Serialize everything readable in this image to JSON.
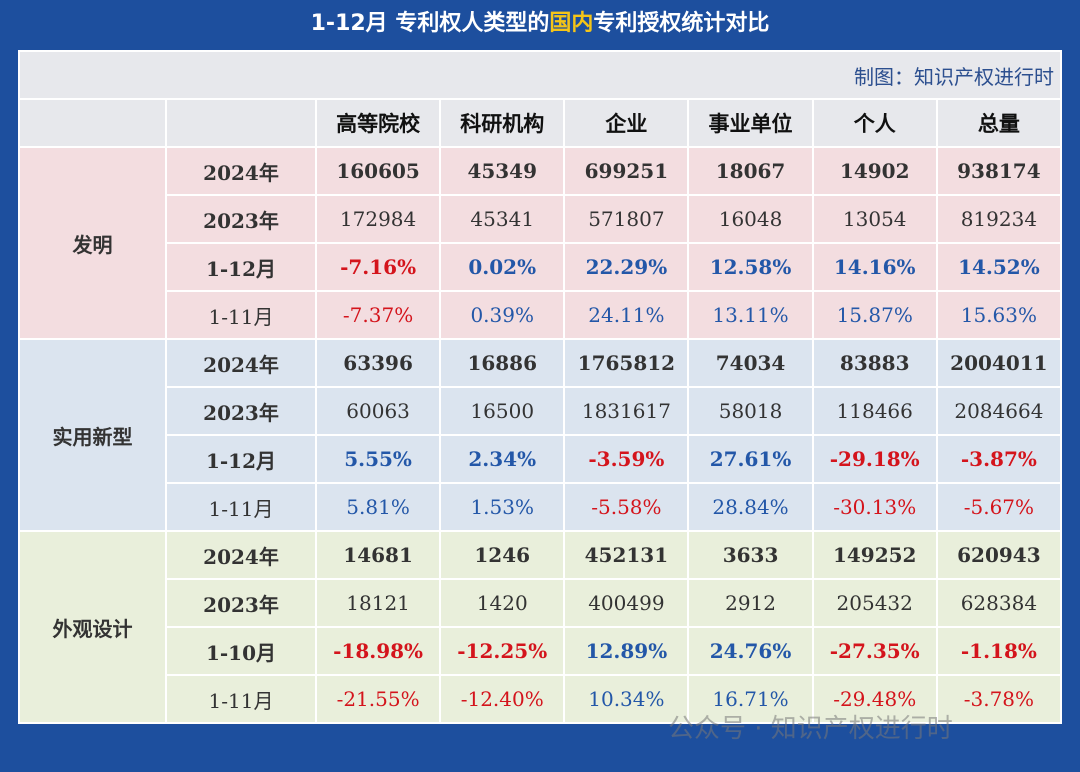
{
  "title": {
    "parts": [
      "1-12月  专利权人类型的",
      "国内",
      "专利授权统计对比"
    ]
  },
  "credit": "制图：知识产权进行时",
  "table": {
    "columns": [
      "高等院校",
      "科研机构",
      "企业",
      "事业单位",
      "个人",
      "总量"
    ],
    "sections": [
      {
        "name": "发明",
        "rows": [
          {
            "label": "2024年",
            "cells": [
              "160605",
              "45349",
              "699251",
              "18067",
              "14902",
              "938174"
            ]
          },
          {
            "label": "2023年",
            "cells": [
              "172984",
              "45341",
              "571807",
              "16048",
              "13054",
              "819234"
            ]
          },
          {
            "label": "1-12月",
            "cells": [
              "-7.16%",
              "0.02%",
              "22.29%",
              "12.58%",
              "14.16%",
              "14.52%"
            ]
          },
          {
            "label": "1-11月",
            "cells": [
              "-7.37%",
              "0.39%",
              "24.11%",
              "13.11%",
              "15.87%",
              "15.63%"
            ]
          }
        ]
      },
      {
        "name": "实用新型",
        "rows": [
          {
            "label": "2024年",
            "cells": [
              "63396",
              "16886",
              "1765812",
              "74034",
              "83883",
              "2004011"
            ]
          },
          {
            "label": "2023年",
            "cells": [
              "60063",
              "16500",
              "1831617",
              "58018",
              "118466",
              "2084664"
            ]
          },
          {
            "label": "1-12月",
            "cells": [
              "5.55%",
              "2.34%",
              "-3.59%",
              "27.61%",
              "-29.18%",
              "-3.87%"
            ]
          },
          {
            "label": "1-11月",
            "cells": [
              "5.81%",
              "1.53%",
              "-5.58%",
              "28.84%",
              "-30.13%",
              "-5.67%"
            ]
          }
        ]
      },
      {
        "name": "外观设计",
        "rows": [
          {
            "label": "2024年",
            "cells": [
              "14681",
              "1246",
              "452131",
              "3633",
              "149252",
              "620943"
            ]
          },
          {
            "label": "2023年",
            "cells": [
              "18121",
              "1420",
              "400499",
              "2912",
              "205432",
              "628384"
            ]
          },
          {
            "label": "1-10月",
            "cells": [
              "-18.98%",
              "-12.25%",
              "12.89%",
              "24.76%",
              "-27.35%",
              "-1.18%"
            ]
          },
          {
            "label": "1-11月",
            "cells": [
              "-21.55%",
              "-12.40%",
              "10.34%",
              "16.71%",
              "-29.48%",
              "-3.78%"
            ]
          }
        ]
      }
    ]
  },
  "watermark": "公众号 · 知识产权进行时"
}
